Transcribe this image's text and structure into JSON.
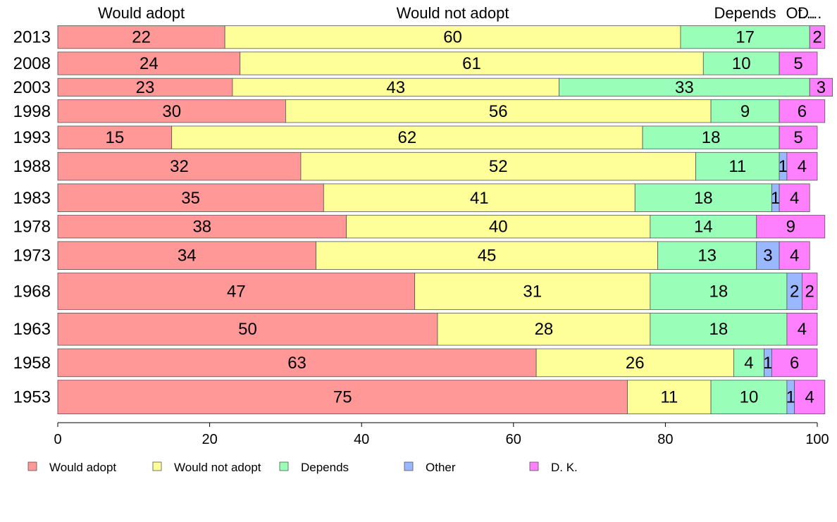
{
  "chart_data": {
    "type": "bar",
    "orientation": "horizontal",
    "stacked": true,
    "categories": [
      "2013",
      "2008",
      "2003",
      "1998",
      "1993",
      "1988",
      "1983",
      "1978",
      "1973",
      "1968",
      "1963",
      "1958",
      "1953"
    ],
    "series": [
      {
        "name": "Would adopt",
        "color": "#ff9896",
        "values": [
          22,
          24,
          23,
          30,
          15,
          32,
          35,
          38,
          34,
          47,
          50,
          63,
          75
        ]
      },
      {
        "name": "Would not adopt",
        "color": "#ffff9a",
        "values": [
          60,
          61,
          43,
          56,
          62,
          52,
          41,
          40,
          45,
          31,
          28,
          26,
          11
        ]
      },
      {
        "name": "Depends",
        "color": "#99ffb8",
        "values": [
          17,
          10,
          33,
          9,
          18,
          11,
          18,
          14,
          13,
          18,
          18,
          4,
          10
        ]
      },
      {
        "name": "Other",
        "color": "#99b8ff",
        "values": [
          0,
          0,
          0,
          0,
          0,
          1,
          1,
          0,
          3,
          2,
          0,
          1,
          1
        ]
      },
      {
        "name": "D. K.",
        "color": "#ff80ff",
        "values": [
          2,
          5,
          3,
          6,
          5,
          4,
          4,
          9,
          4,
          2,
          4,
          6,
          4
        ]
      }
    ],
    "row_weights": [
      0.92,
      0.92,
      0.75,
      0.92,
      0.92,
      1.1,
      1.1,
      0.92,
      1.1,
      1.4,
      1.25,
      1.1,
      1.3
    ],
    "top_labels": [
      "Would adopt",
      "Would not adopt",
      "Depends",
      "Ot...",
      "D..."
    ],
    "xlim": [
      0,
      100
    ],
    "xticks": [
      "0",
      "20",
      "40",
      "60",
      "80",
      "100"
    ],
    "xlabel": "",
    "ylabel": "",
    "title": "",
    "grid": false,
    "legend_position": "bottom",
    "legend": [
      "Would adopt",
      "Would not adopt",
      "Depends",
      "Other",
      "D. K."
    ]
  }
}
